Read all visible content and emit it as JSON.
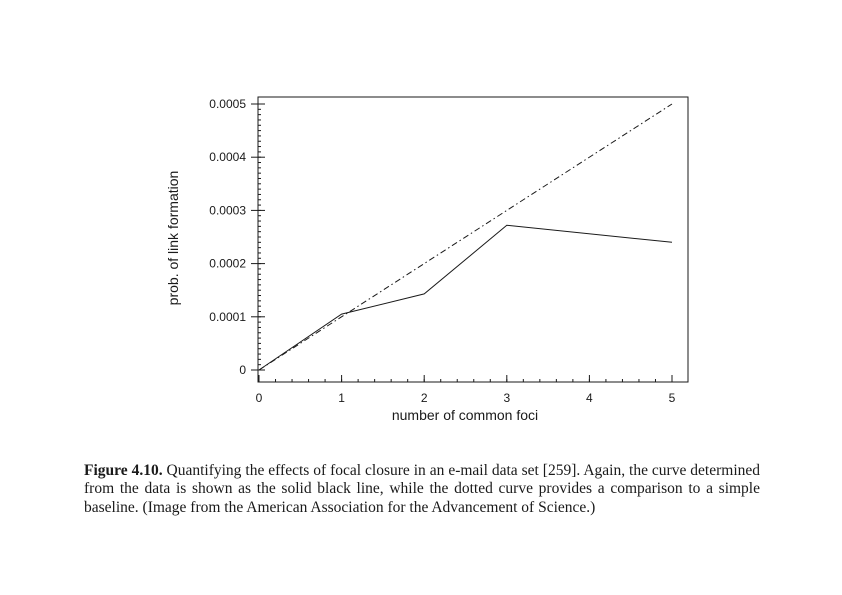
{
  "chart_data": {
    "type": "line",
    "xlabel": "number of common foci",
    "ylabel": "prob. of link formation",
    "xlim": [
      0,
      5
    ],
    "ylim": [
      0,
      0.0005
    ],
    "xticks": [
      {
        "value": 0,
        "label": "0"
      },
      {
        "value": 1,
        "label": "1"
      },
      {
        "value": 2,
        "label": "2"
      },
      {
        "value": 3,
        "label": "3"
      },
      {
        "value": 4,
        "label": "4"
      },
      {
        "value": 5,
        "label": "5"
      }
    ],
    "yticks": [
      {
        "value": 0,
        "label": "0"
      },
      {
        "value": 0.0001,
        "label": "0.0001"
      },
      {
        "value": 0.0002,
        "label": "0.0002"
      },
      {
        "value": 0.0003,
        "label": "0.0003"
      },
      {
        "value": 0.0004,
        "label": "0.0004"
      },
      {
        "value": 0.0005,
        "label": "0.0005"
      }
    ],
    "series": [
      {
        "style": "solid",
        "color": "#1a1a1a",
        "x": [
          0,
          1,
          2,
          3,
          5
        ],
        "y": [
          0,
          0.000105,
          0.000143,
          0.000272,
          0.00024
        ]
      },
      {
        "style": "dashed",
        "color": "#1a1a1a",
        "x": [
          0,
          5
        ],
        "y": [
          0,
          0.0005
        ]
      }
    ],
    "grid": false,
    "legend": "none"
  },
  "caption": {
    "label": "Figure 4.10.",
    "text": "Quantifying the effects of focal closure in an e-mail data set [259]. Again, the curve determined from the data is shown as the solid black line, while the dotted curve provides a comparison to a simple baseline. (Image from the American Association for the Advancement of Science.)"
  }
}
